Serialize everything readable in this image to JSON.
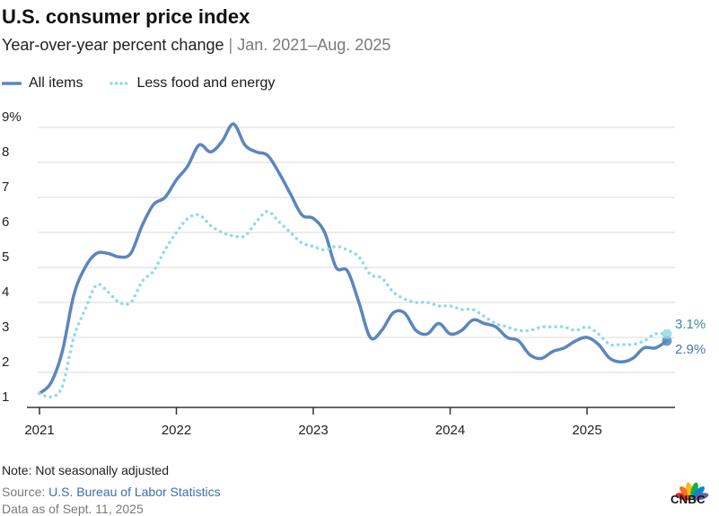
{
  "title": "U.S. consumer price index",
  "subtitle": {
    "main": "Year-over-year percent change",
    "separator": "|",
    "range": "Jan. 2021–Aug. 2025"
  },
  "footer": {
    "note": "Note: Not seasonally adjusted",
    "source_prefix": "Source:",
    "source_name": "U.S. Bureau of Labor Statistics",
    "as_of": "Data as of Sept. 11, 2025"
  },
  "brand": {
    "name": "CNBC"
  },
  "colors": {
    "all_items": "#5b86be",
    "less_food_energy": "#8bdbe6",
    "grid": "#d9d9d9",
    "axis": "#333333"
  },
  "chart_data": {
    "type": "line",
    "title": "U.S. consumer price index",
    "subtitle": "Year-over-year percent change",
    "xlabel": "",
    "ylabel": "",
    "x_ticks": [
      "2021",
      "2022",
      "2023",
      "2024",
      "2025"
    ],
    "y_ticks": [
      "1",
      "2",
      "3",
      "4",
      "5",
      "6",
      "7",
      "8",
      "9%"
    ],
    "ylim": [
      1,
      9
    ],
    "grid": true,
    "legend_position": "top-left",
    "x": [
      "2021-01",
      "2021-02",
      "2021-03",
      "2021-04",
      "2021-05",
      "2021-06",
      "2021-07",
      "2021-08",
      "2021-09",
      "2021-10",
      "2021-11",
      "2021-12",
      "2022-01",
      "2022-02",
      "2022-03",
      "2022-04",
      "2022-05",
      "2022-06",
      "2022-07",
      "2022-08",
      "2022-09",
      "2022-10",
      "2022-11",
      "2022-12",
      "2023-01",
      "2023-02",
      "2023-03",
      "2023-04",
      "2023-05",
      "2023-06",
      "2023-07",
      "2023-08",
      "2023-09",
      "2023-10",
      "2023-11",
      "2023-12",
      "2024-01",
      "2024-02",
      "2024-03",
      "2024-04",
      "2024-05",
      "2024-06",
      "2024-07",
      "2024-08",
      "2024-09",
      "2024-10",
      "2024-11",
      "2024-12",
      "2025-01",
      "2025-02",
      "2025-03",
      "2025-04",
      "2025-05",
      "2025-06",
      "2025-07",
      "2025-08"
    ],
    "series": [
      {
        "name": "All items",
        "style": "solid",
        "values": [
          1.4,
          1.7,
          2.6,
          4.2,
          5.0,
          5.4,
          5.4,
          5.3,
          5.4,
          6.2,
          6.8,
          7.0,
          7.5,
          7.9,
          8.5,
          8.3,
          8.6,
          9.1,
          8.5,
          8.3,
          8.2,
          7.7,
          7.1,
          6.5,
          6.4,
          6.0,
          5.0,
          4.9,
          4.0,
          3.0,
          3.2,
          3.7,
          3.7,
          3.2,
          3.1,
          3.4,
          3.1,
          3.2,
          3.5,
          3.4,
          3.3,
          3.0,
          2.9,
          2.5,
          2.4,
          2.6,
          2.7,
          2.9,
          3.0,
          2.8,
          2.4,
          2.3,
          2.4,
          2.7,
          2.7,
          2.9
        ],
        "end_label": "2.9%"
      },
      {
        "name": "Less food and energy",
        "style": "dotted",
        "values": [
          1.4,
          1.3,
          1.6,
          3.0,
          3.8,
          4.5,
          4.3,
          4.0,
          4.0,
          4.6,
          4.9,
          5.5,
          6.0,
          6.4,
          6.5,
          6.2,
          6.0,
          5.9,
          5.9,
          6.3,
          6.6,
          6.3,
          6.0,
          5.7,
          5.6,
          5.5,
          5.6,
          5.5,
          5.3,
          4.8,
          4.7,
          4.3,
          4.1,
          4.0,
          4.0,
          3.9,
          3.9,
          3.8,
          3.8,
          3.6,
          3.4,
          3.3,
          3.2,
          3.2,
          3.3,
          3.3,
          3.3,
          3.2,
          3.3,
          3.1,
          2.8,
          2.8,
          2.8,
          2.9,
          3.1,
          3.1
        ],
        "end_label": "3.1%"
      }
    ]
  }
}
